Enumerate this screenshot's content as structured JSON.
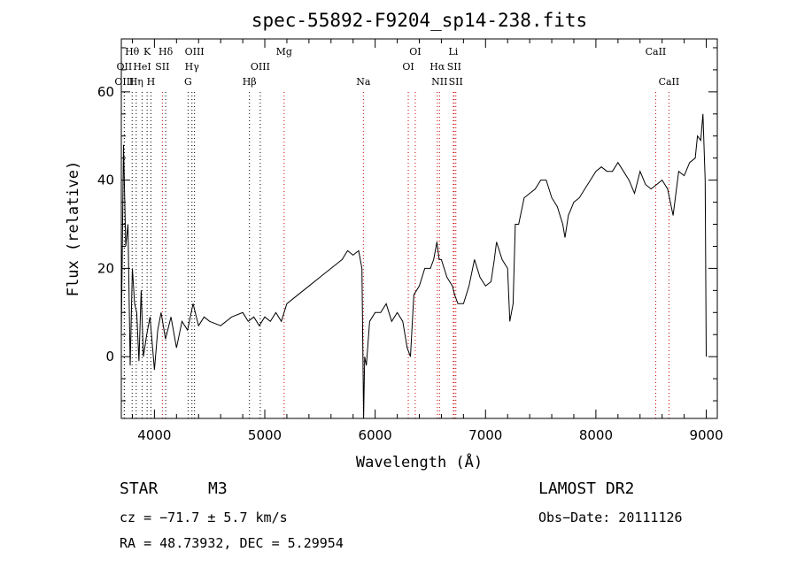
{
  "chart_data": {
    "type": "line",
    "title": "spec-55892-F9204_sp14-238.fits",
    "xlabel": "Wavelength (Å)",
    "ylabel": "Flux (relative)",
    "xlim": [
      3700,
      9100
    ],
    "ylim": [
      -14,
      72
    ],
    "x_ticks": [
      4000,
      5000,
      6000,
      7000,
      8000,
      9000
    ],
    "y_ticks": [
      0,
      20,
      40,
      60
    ],
    "x_tick_labels": [
      "4000",
      "5000",
      "6000",
      "7000",
      "8000",
      "9000"
    ],
    "y_tick_labels": [
      "0",
      "20",
      "40",
      "60"
    ],
    "series": [
      {
        "x": [
          3700,
          3720,
          3740,
          3760,
          3780,
          3800,
          3820,
          3840,
          3860,
          3880,
          3900,
          3930,
          3960,
          4000,
          4030,
          4060,
          4100,
          4150,
          4200,
          4250,
          4300,
          4350,
          4400,
          4450,
          4500,
          4600,
          4700,
          4800,
          4850,
          4900,
          4950,
          5000,
          5050,
          5100,
          5150,
          5200,
          5300,
          5400,
          5500,
          5600,
          5700,
          5750,
          5800,
          5850,
          5880,
          5895,
          5905,
          5920,
          5950,
          6000,
          6050,
          6100,
          6150,
          6200,
          6250,
          6290,
          6320,
          6350,
          6400,
          6450,
          6500,
          6530,
          6560,
          6580,
          6600,
          6650,
          6700,
          6720,
          6750,
          6800,
          6850,
          6900,
          6950,
          7000,
          7050,
          7080,
          7100,
          7150,
          7200,
          7220,
          7250,
          7270,
          7300,
          7350,
          7400,
          7450,
          7500,
          7550,
          7600,
          7650,
          7700,
          7720,
          7750,
          7800,
          7850,
          7900,
          7950,
          8000,
          8050,
          8100,
          8150,
          8200,
          8250,
          8300,
          8350,
          8400,
          8450,
          8500,
          8550,
          8600,
          8650,
          8700,
          8750,
          8800,
          8850,
          8900,
          8920,
          8950,
          8970,
          8990,
          9000
        ],
        "y": [
          5,
          48,
          25,
          30,
          -2,
          20,
          12,
          10,
          -1,
          15,
          0,
          5,
          9,
          -3,
          6,
          10,
          4,
          9,
          2,
          8,
          6,
          12,
          7,
          9,
          8,
          7,
          9,
          10,
          8,
          9,
          7,
          9,
          8,
          10,
          8,
          12,
          14,
          16,
          18,
          20,
          22,
          24,
          23,
          24,
          20,
          -14,
          0,
          -2,
          8,
          10,
          10,
          12,
          8,
          10,
          8,
          2,
          0,
          14,
          16,
          20,
          20,
          22,
          26,
          22,
          22,
          18,
          16,
          14,
          12,
          12,
          16,
          22,
          18,
          16,
          17,
          22,
          26,
          22,
          20,
          8,
          12,
          30,
          30,
          36,
          37,
          38,
          40,
          40,
          36,
          34,
          30,
          27,
          32,
          35,
          36,
          38,
          40,
          42,
          43,
          42,
          42,
          44,
          42,
          40,
          37,
          42,
          39,
          38,
          39,
          40,
          38,
          32,
          42,
          41,
          44,
          45,
          50,
          49,
          55,
          40,
          0
        ]
      }
    ],
    "emission_lines": [
      {
        "label": "Hθ",
        "x": 3798,
        "row": 1,
        "color": "#000000"
      },
      {
        "label": "K",
        "x": 3934,
        "row": 1,
        "color": "#000000"
      },
      {
        "label": "Hδ",
        "x": 4102,
        "row": 1,
        "color": "#000000"
      },
      {
        "label": "OIII",
        "x": 4363,
        "row": 1,
        "color": "#000000"
      },
      {
        "label": "Mg",
        "x": 5175,
        "row": 1,
        "color": "#000000"
      },
      {
        "label": "OI",
        "x": 6363,
        "row": 1,
        "color": "#000000"
      },
      {
        "label": "Li",
        "x": 6708,
        "row": 1,
        "color": "#000000"
      },
      {
        "label": "CaII",
        "x": 8542,
        "row": 1,
        "color": "#000000"
      },
      {
        "label": "OII",
        "x": 3727,
        "row": 2,
        "color": "#000000"
      },
      {
        "label": "HeI",
        "x": 3889,
        "row": 2,
        "color": "#000000"
      },
      {
        "label": "SII",
        "x": 4072,
        "row": 2,
        "color": "#000000"
      },
      {
        "label": "Hγ",
        "x": 4340,
        "row": 2,
        "color": "#000000"
      },
      {
        "label": "OIII",
        "x": 4959,
        "row": 2,
        "color": "#000000"
      },
      {
        "label": "OI",
        "x": 6300,
        "row": 2,
        "color": "#000000"
      },
      {
        "label": "Hα",
        "x": 6563,
        "row": 2,
        "color": "#000000"
      },
      {
        "label": "SII",
        "x": 6716,
        "row": 2,
        "color": "#000000"
      },
      {
        "label": "OIII",
        "x": 3727,
        "row": 3,
        "color": "#000000"
      },
      {
        "label": "Hη",
        "x": 3835,
        "row": 3,
        "color": "#000000"
      },
      {
        "label": "H",
        "x": 3968,
        "row": 3,
        "color": "#000000"
      },
      {
        "label": "G",
        "x": 4305,
        "row": 3,
        "color": "#000000"
      },
      {
        "label": "Hβ",
        "x": 4861,
        "row": 3,
        "color": "#000000"
      },
      {
        "label": "Na",
        "x": 5893,
        "row": 3,
        "color": "#000000"
      },
      {
        "label": "NII",
        "x": 6583,
        "row": 3,
        "color": "#000000"
      },
      {
        "label": "SII",
        "x": 6731,
        "row": 3,
        "color": "#000000"
      },
      {
        "label": "CaII",
        "x": 8662,
        "row": 3,
        "color": "#000000"
      }
    ],
    "line_colors": {
      "default": "#000000",
      "red": "#cc0000"
    }
  },
  "info": {
    "object_type": "STAR",
    "subclass": "M3",
    "survey": "LAMOST DR2",
    "velocity": "cz = −71.7 ± 5.7 km/s",
    "obs_date": "Obs−Date: 20111126",
    "coords": "RA =  48.73932, DEC =   5.29954"
  }
}
